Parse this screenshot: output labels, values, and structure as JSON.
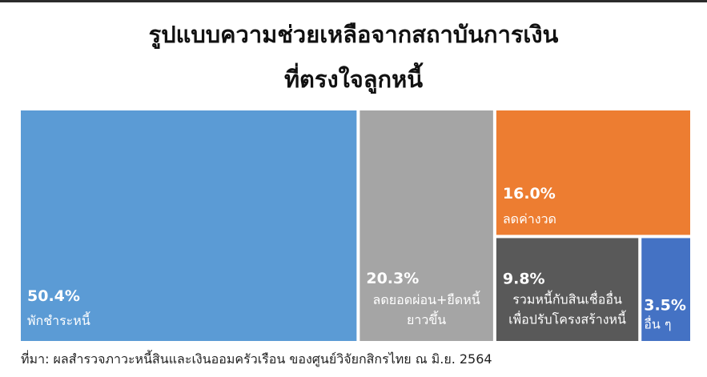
{
  "colors": {
    "blue": "#5b9bd5",
    "gray": "#a5a5a5",
    "orange": "#ed7d31",
    "dark_gray": "#595959",
    "royal_blue": "#4472c4",
    "label": "#ffffff"
  },
  "chart_data": {
    "type": "treemap",
    "title_lines": [
      "รูปแบบความช่วยเหลือจากสถาบันการเงิน",
      "ที่ตรงใจลูกหนี้"
    ],
    "unit": "%",
    "items": [
      {
        "value": 50.4,
        "value_label": "50.4%",
        "label_lines": [
          "พักชำระหนี้"
        ],
        "color": "#5b9bd5"
      },
      {
        "value": 20.3,
        "value_label": "20.3%",
        "label_lines": [
          "ลดยอดผ่อน+ยืดหนี้",
          "ยาวขึ้น"
        ],
        "color": "#a5a5a5"
      },
      {
        "value": 16.0,
        "value_label": "16.0%",
        "label_lines": [
          "ลดค่างวด"
        ],
        "color": "#ed7d31"
      },
      {
        "value": 9.8,
        "value_label": "9.8%",
        "label_lines": [
          "รวมหนี้กับสินเชื่ออื่น",
          "เพื่อปรับโครงสร้างหนี้"
        ],
        "color": "#595959"
      },
      {
        "value": 3.5,
        "value_label": "3.5%",
        "label_lines": [
          "อื่น ๆ"
        ],
        "color": "#4472c4"
      }
    ]
  },
  "source": "ที่มา: ผลสำรวจภาวะหนี้สินและเงินออมครัวเรือน ของศูนย์วิจัยกสิกรไทย ณ มิ.ย. 2564"
}
